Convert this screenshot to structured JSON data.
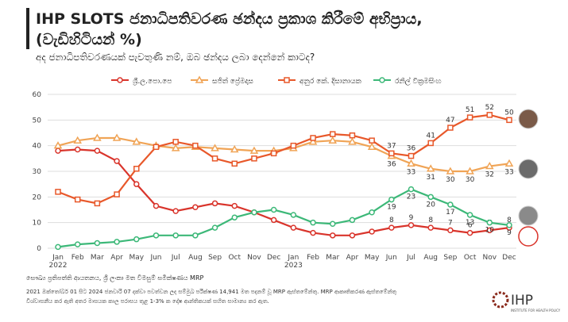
{
  "chart_data": {
    "type": "line",
    "title": "IHP SLOTS ජනාධිපතිවරණ ඡන්දය ප්‍රකාශ කිරීමේ අභිප්‍රාය,",
    "title_line2": "(වැඩිහිටියන් %)",
    "subtitle": "අද ජනාධිපතිවරණයක් පැවතුණි නම්, ඔබ ඡන්දය ලබා දෙන්නේ කාටද?",
    "categories": [
      "Jan",
      "Feb",
      "Mar",
      "Apr",
      "May",
      "Jun",
      "Jul",
      "Aug",
      "Sep",
      "Oct",
      "Nov",
      "Dec",
      "Jan",
      "Feb",
      "Mar",
      "Apr",
      "May",
      "Jun",
      "Jul",
      "Aug",
      "Sep",
      "Oct",
      "Nov",
      "Dec"
    ],
    "years": [
      "2022",
      "2023"
    ],
    "ylim": [
      0,
      60
    ],
    "yticks": [
      0,
      10,
      20,
      30,
      40,
      50,
      60
    ],
    "grid": true,
    "series": [
      {
        "name": "ශ්‍රී.ල.පො.පෙ",
        "color": "#d9342b",
        "marker": "circle",
        "values": [
          38,
          38.5,
          38,
          34,
          25,
          16.5,
          14.5,
          16,
          17.5,
          16.5,
          14,
          11,
          8,
          6,
          5,
          5,
          6.5,
          8,
          9,
          8,
          7,
          6,
          7,
          8
        ],
        "value_labels": [
          null,
          null,
          null,
          null,
          null,
          null,
          null,
          null,
          null,
          null,
          null,
          null,
          null,
          null,
          null,
          null,
          null,
          "8",
          "9",
          "8",
          "7",
          "6",
          "7",
          "8"
        ]
      },
      {
        "name": "සජිත් ප්‍රේමදාස",
        "color": "#f0a456",
        "marker": "triangle",
        "values": [
          40,
          42,
          43,
          43,
          41.5,
          40,
          39,
          39.5,
          39,
          38.5,
          38,
          38,
          39,
          41.5,
          42,
          41.5,
          39.5,
          36,
          33,
          31,
          30,
          30,
          32,
          33
        ],
        "value_labels": [
          null,
          null,
          null,
          null,
          null,
          null,
          null,
          null,
          null,
          null,
          null,
          null,
          null,
          null,
          null,
          null,
          null,
          "36",
          "33",
          "31",
          "30",
          "30",
          "32",
          "33"
        ]
      },
      {
        "name": "අනුර කේ. දිසානායක",
        "color": "#e8582a",
        "marker": "square",
        "values": [
          22,
          19,
          17.5,
          21,
          31,
          39.5,
          41.5,
          40,
          35,
          33,
          35,
          37,
          40,
          43,
          44.5,
          44,
          42,
          37,
          36,
          41,
          47,
          51,
          52,
          50
        ],
        "value_labels": [
          null,
          null,
          null,
          null,
          null,
          null,
          null,
          null,
          null,
          null,
          null,
          null,
          null,
          null,
          null,
          null,
          null,
          "37",
          "36",
          "41",
          "47",
          "51",
          "52",
          "50"
        ]
      },
      {
        "name": "රනිල් වික්‍රමසිංහ",
        "color": "#3cb878",
        "marker": "circle",
        "values": [
          0.5,
          1.5,
          2,
          2.5,
          3.5,
          5,
          5,
          5,
          8,
          12,
          14,
          15,
          13,
          10,
          9.5,
          11,
          14,
          19,
          23,
          20,
          17,
          13,
          10,
          9
        ],
        "value_labels": [
          null,
          null,
          null,
          null,
          null,
          null,
          null,
          null,
          null,
          null,
          null,
          null,
          null,
          null,
          null,
          null,
          null,
          "19",
          "23",
          "20",
          "17",
          "13",
          "10",
          "9"
        ]
      }
    ],
    "source": "සෞඛ්‍ය ප්‍රතිපත්ති ආයතනය, ශ්‍රී ලංකා මත විමසුම් සමීක්ෂණය MRP",
    "note_line1": "2021 ඔක්තෝබර් 01 සිට 2024 ජනවාරි 07 දක්වා පවත්වන ලද සම්මුඛ පරීක්ෂණ 14,941 මත පදනම් වූ MRP ඇස්තමේන්තු. MRP ආකෘතිකරණ ඇස්තමේන්තු",
    "note_line2": "විශ්වාසනීය කර ඇති අතර මාසයක කාල පරාසය තුළ 1-3% ක දෝෂ ආන්තිකයක් සහිත සාමාන්‍ය කර ඇත.",
    "logo": "IHP",
    "logo_sub": "INSTITUTE FOR HEALTH POLICY"
  }
}
